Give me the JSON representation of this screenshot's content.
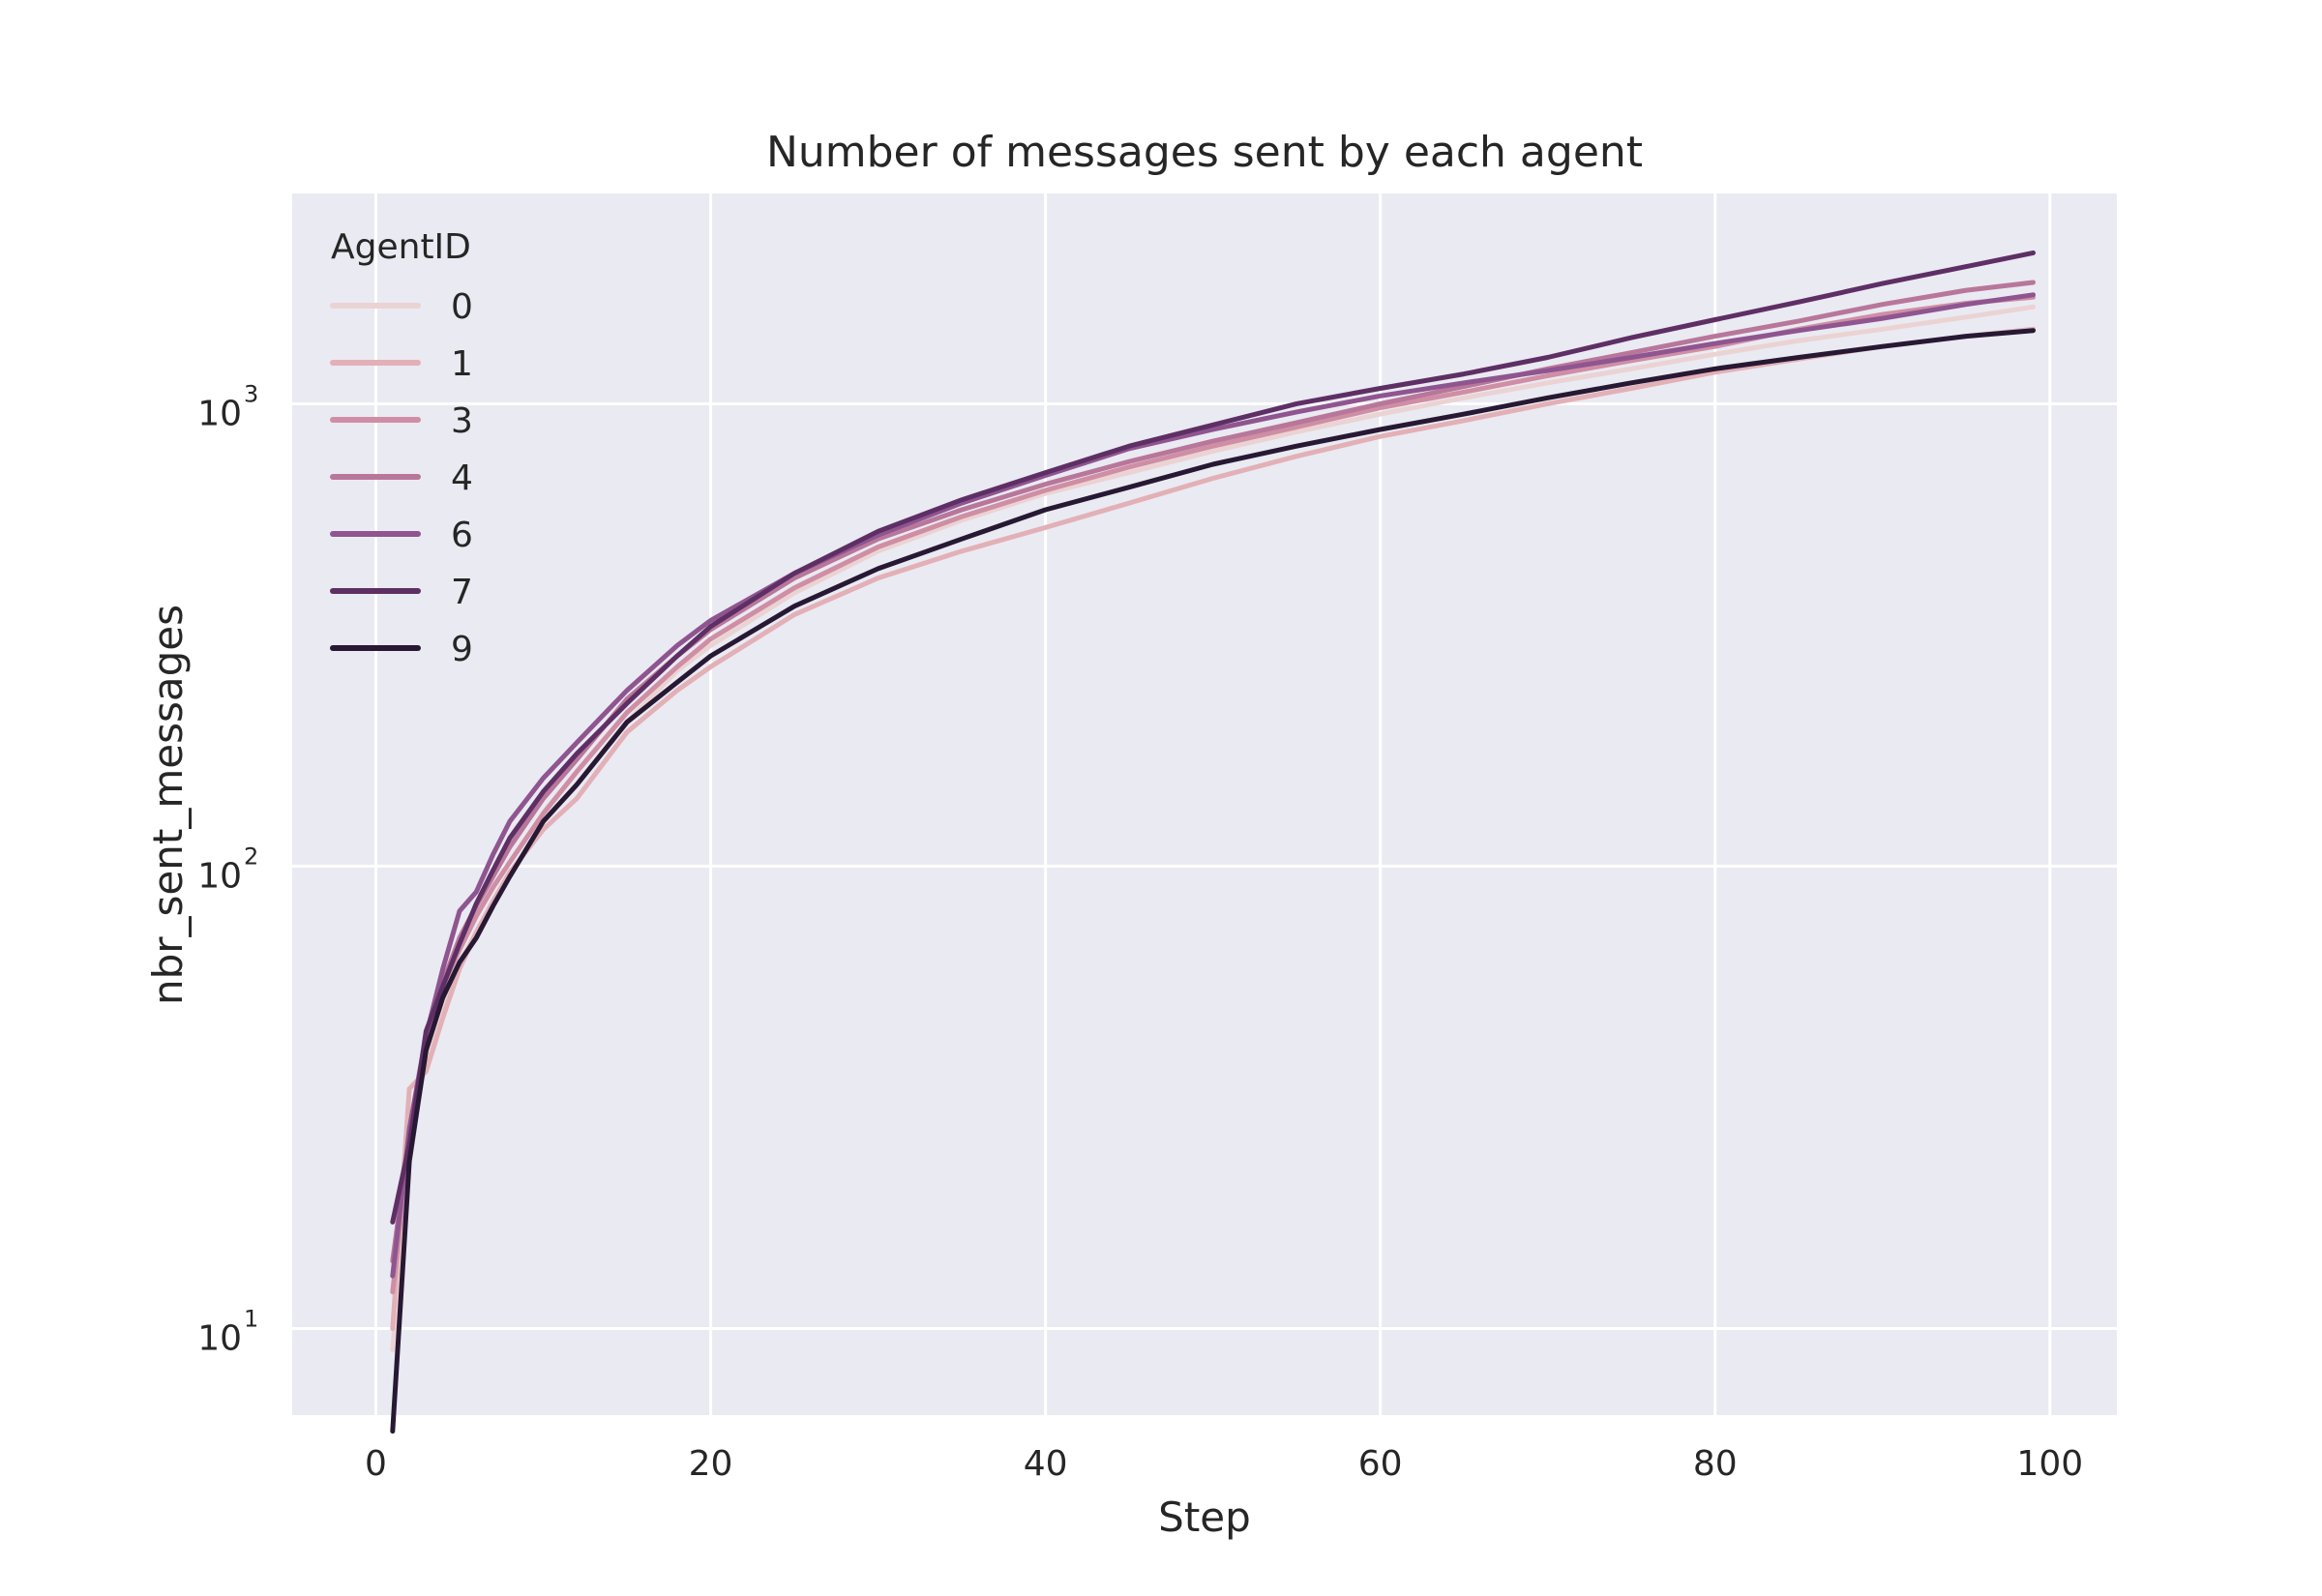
{
  "chart_data": {
    "type": "line",
    "title": "Number of messages sent by each agent",
    "xlabel": "Step",
    "ylabel": "nbr_sent_messages",
    "xlim": [
      -5,
      104
    ],
    "ylim": [
      6.5,
      2850
    ],
    "yscale": "log",
    "grid": true,
    "background": "#eaeaf2",
    "x_ticks": [
      0,
      20,
      40,
      60,
      80,
      100
    ],
    "y_ticks": [
      {
        "value": 10,
        "base": "10",
        "exp": "1"
      },
      {
        "value": 100,
        "base": "10",
        "exp": "2"
      },
      {
        "value": 1000,
        "base": "10",
        "exp": "3"
      }
    ],
    "legend": {
      "title": "AgentID",
      "placement": "upper left"
    },
    "x": [
      1,
      2,
      3,
      4,
      5,
      6,
      7,
      8,
      10,
      12,
      15,
      18,
      20,
      25,
      30,
      35,
      40,
      45,
      50,
      55,
      60,
      65,
      70,
      75,
      80,
      85,
      90,
      95,
      99
    ],
    "series": [
      {
        "name": "0",
        "color": "#ebd3d3",
        "values": [
          9,
          24,
          39,
          50,
          62,
          72,
          84,
          95,
          125,
          150,
          205,
          265,
          300,
          390,
          480,
          560,
          640,
          710,
          790,
          870,
          950,
          1030,
          1110,
          1190,
          1280,
          1370,
          1450,
          1540,
          1620
        ]
      },
      {
        "name": "1",
        "color": "#e2b0b6",
        "values": [
          10,
          33,
          36,
          47,
          60,
          72,
          84,
          97,
          120,
          140,
          195,
          240,
          270,
          350,
          420,
          480,
          540,
          610,
          690,
          770,
          850,
          920,
          1000,
          1080,
          1170,
          1250,
          1330,
          1400,
          1450
        ]
      },
      {
        "name": "3",
        "color": "#cf8ea4",
        "values": [
          12,
          25,
          40,
          55,
          66,
          78,
          90,
          102,
          130,
          160,
          215,
          270,
          310,
          400,
          490,
          570,
          650,
          730,
          810,
          890,
          980,
          1060,
          1150,
          1240,
          1330,
          1450,
          1560,
          1650,
          1700
        ]
      },
      {
        "name": "4",
        "color": "#b8779a",
        "values": [
          14,
          26,
          42,
          56,
          70,
          82,
          95,
          110,
          140,
          170,
          230,
          285,
          325,
          420,
          510,
          590,
          670,
          750,
          830,
          910,
          1000,
          1090,
          1190,
          1290,
          1400,
          1510,
          1640,
          1760,
          1830
        ]
      },
      {
        "name": "6",
        "color": "#8f5590",
        "values": [
          13,
          27,
          43,
          60,
          80,
          88,
          106,
          125,
          155,
          185,
          240,
          300,
          340,
          430,
          520,
          610,
          700,
          800,
          880,
          960,
          1040,
          1110,
          1180,
          1260,
          1350,
          1440,
          1530,
          1640,
          1720
        ]
      },
      {
        "name": "7",
        "color": "#5e2f64",
        "values": [
          17,
          25,
          44,
          55,
          68,
          83,
          98,
          115,
          145,
          175,
          225,
          285,
          330,
          430,
          530,
          620,
          710,
          810,
          900,
          1000,
          1080,
          1160,
          1260,
          1390,
          1520,
          1660,
          1820,
          1980,
          2120
        ]
      },
      {
        "name": "9",
        "color": "#271833",
        "values": [
          6,
          23,
          40,
          52,
          62,
          70,
          82,
          95,
          125,
          150,
          205,
          250,
          285,
          365,
          440,
          510,
          590,
          660,
          740,
          810,
          880,
          950,
          1030,
          1110,
          1190,
          1260,
          1330,
          1400,
          1440
        ]
      }
    ]
  }
}
